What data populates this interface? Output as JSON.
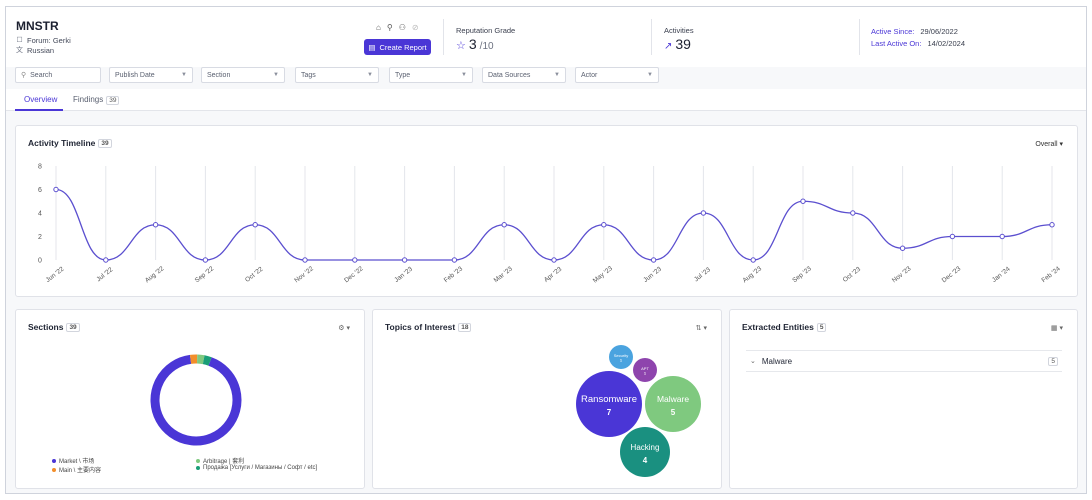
{
  "profile": {
    "name": "MNSTR",
    "forum": "Forum: Gerki",
    "language": "Russian"
  },
  "actions": {
    "create_report": "Create Report"
  },
  "reputation": {
    "label": "Reputation Grade",
    "value": "3",
    "max": "/10"
  },
  "activities": {
    "label": "Activities",
    "value": "39"
  },
  "dates": {
    "active_since_label": "Active Since:",
    "active_since": "29/06/2022",
    "last_active_label": "Last Active On:",
    "last_active": "14/02/2024"
  },
  "filters": {
    "search_placeholder": "Search",
    "publish_date": "Publish Date",
    "section": "Section",
    "tags": "Tags",
    "type": "Type",
    "data_sources": "Data Sources",
    "actor": "Actor"
  },
  "tabs": {
    "overview": "Overview",
    "findings": "Findings",
    "findings_count": "39"
  },
  "timeline": {
    "title": "Activity Timeline",
    "count": "39",
    "scope": "Overall"
  },
  "chart_data": {
    "type": "line",
    "x": [
      "Jun '22",
      "Jul '22",
      "Aug '22",
      "Sep '22",
      "Oct '22",
      "Nov '22",
      "Dec '22",
      "Jan '23",
      "Feb '23",
      "Mar '23",
      "Apr '23",
      "May '23",
      "Jun '23",
      "Jul '23",
      "Aug '23",
      "Sep '23",
      "Oct '23",
      "Nov '23",
      "Dec '23",
      "Jan '24",
      "Feb '24"
    ],
    "y": [
      6,
      0,
      3,
      0,
      3,
      0,
      0,
      0,
      0,
      3,
      0,
      3,
      0,
      4,
      0,
      5,
      4,
      1,
      2,
      2,
      3
    ],
    "yticks": [
      0,
      2,
      4,
      6,
      8
    ],
    "ylim": [
      0,
      8
    ],
    "grid": "vertical",
    "color": "#5b4fcf"
  },
  "sections": {
    "title": "Sections",
    "count": "39",
    "legend": [
      {
        "label": "Market \\ 市场",
        "color": "#4a36d6"
      },
      {
        "label": "Arbitrage | 套利",
        "color": "#7fc97f"
      },
      {
        "label": "Main \\ 主要内容",
        "color": "#f28e2b"
      },
      {
        "label": "Продажа [Услуги / Магазины / Софт / etc]",
        "color": "#1a9e77"
      }
    ],
    "donut": [
      36,
      1,
      1,
      1
    ],
    "donut_colors": [
      "#4a36d6",
      "#f28e2b",
      "#7fc97f",
      "#1a9e77"
    ]
  },
  "topics": {
    "title": "Topics of Interest",
    "count": "18",
    "bubbles": [
      {
        "label": "Ransomware",
        "value": "7",
        "color": "#4a36d6"
      },
      {
        "label": "Malware",
        "value": "5",
        "color": "#7fc97f"
      },
      {
        "label": "Hacking",
        "value": "4",
        "color": "#1a9080"
      },
      {
        "label": "Security",
        "value": "1",
        "color": "#4aa3df"
      },
      {
        "label": "APT",
        "value": "1",
        "color": "#8e44ad"
      }
    ]
  },
  "entities": {
    "title": "Extracted Entities",
    "count": "5",
    "rows": [
      {
        "label": "Malware",
        "count": "5"
      }
    ]
  }
}
